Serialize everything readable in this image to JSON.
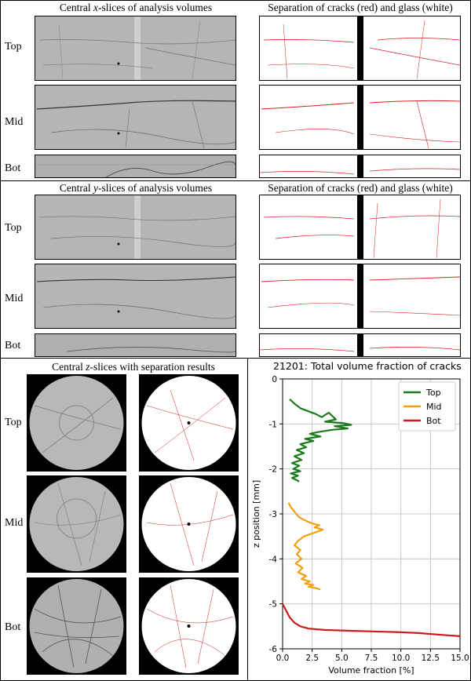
{
  "x_section": {
    "left_title_pre": "Central ",
    "left_title_var": "x",
    "left_title_post": "-slices of analysis volumes",
    "right_title": "Separation of cracks (red) and glass (white)"
  },
  "y_section": {
    "left_title_pre": "Central ",
    "left_title_var": "y",
    "left_title_post": "-slices of analysis volumes",
    "right_title": "Separation of cracks (red) and glass (white)"
  },
  "z_section": {
    "left_title_pre": "Central ",
    "left_title_var": "z",
    "left_title_post": "-slices with separation results"
  },
  "row_labels": {
    "top": "Top",
    "mid": "Mid",
    "bot": "Bot"
  },
  "colors": {
    "crack_red": "#d42020",
    "top": "#1a7a1a",
    "mid": "#f0a010",
    "bot": "#cc1a1a",
    "ct_gray": "#b9b9b9"
  },
  "chart_data": {
    "type": "line",
    "title": "21201: Total volume fraction of cracks",
    "xlabel": "Volume fraction [%]",
    "ylabel": "z position [mm]",
    "xlim": [
      0,
      15
    ],
    "ylim": [
      -6,
      0
    ],
    "xticks": [
      "0.0",
      "2.5",
      "5.0",
      "7.5",
      "10.0",
      "12.5",
      "15.0"
    ],
    "yticks": [
      "0",
      "-1",
      "-2",
      "-3",
      "-4",
      "-5",
      "-6"
    ],
    "grid": true,
    "legend_position": "top-right",
    "series": [
      {
        "name": "Top",
        "color": "#1a7a1a",
        "x": [
          0.6,
          1.0,
          1.5,
          2.2,
          2.8,
          3.3,
          3.9,
          4.5,
          3.6,
          5.1,
          5.8,
          4.4,
          5.5,
          4.2,
          3.0,
          2.3,
          3.2,
          1.9,
          2.6,
          1.5,
          2.0,
          1.2,
          1.8,
          1.0,
          1.6,
          0.8,
          1.4,
          0.9,
          1.5,
          0.7,
          1.3,
          0.8,
          1.2,
          1.4
        ],
        "y": [
          -0.45,
          -0.55,
          -0.65,
          -0.72,
          -0.78,
          -0.85,
          -0.75,
          -0.9,
          -0.95,
          -0.98,
          -1.02,
          -1.05,
          -1.1,
          -1.13,
          -1.18,
          -1.22,
          -1.28,
          -1.33,
          -1.38,
          -1.45,
          -1.52,
          -1.58,
          -1.65,
          -1.72,
          -1.8,
          -1.87,
          -1.93,
          -2.0,
          -2.05,
          -2.1,
          -2.15,
          -2.2,
          -2.25,
          -2.28
        ]
      },
      {
        "name": "Mid",
        "color": "#f0a010",
        "x": [
          0.5,
          0.7,
          1.0,
          1.3,
          1.7,
          2.2,
          2.6,
          3.1,
          2.7,
          3.4,
          2.9,
          1.8,
          1.3,
          1.0,
          1.5,
          1.2,
          1.6,
          1.1,
          1.7,
          1.3,
          2.0,
          1.6,
          2.3,
          1.9,
          2.6,
          2.2,
          2.8,
          3.2
        ],
        "y": [
          -2.75,
          -2.85,
          -2.95,
          -3.05,
          -3.12,
          -3.18,
          -3.22,
          -3.25,
          -3.3,
          -3.35,
          -3.4,
          -3.5,
          -3.6,
          -3.7,
          -3.8,
          -3.9,
          -4.0,
          -4.1,
          -4.2,
          -4.3,
          -4.38,
          -4.45,
          -4.5,
          -4.55,
          -4.58,
          -4.62,
          -4.65,
          -4.68
        ]
      },
      {
        "name": "Bot",
        "color": "#cc1a1a",
        "x": [
          0.0,
          0.3,
          0.6,
          1.0,
          1.5,
          2.2,
          3.5,
          6.0,
          8.5,
          10.0,
          11.5,
          13.0,
          14.0,
          15.0
        ],
        "y": [
          -5.0,
          -5.15,
          -5.3,
          -5.42,
          -5.5,
          -5.55,
          -5.58,
          -5.6,
          -5.62,
          -5.63,
          -5.65,
          -5.68,
          -5.7,
          -5.72
        ]
      }
    ]
  }
}
